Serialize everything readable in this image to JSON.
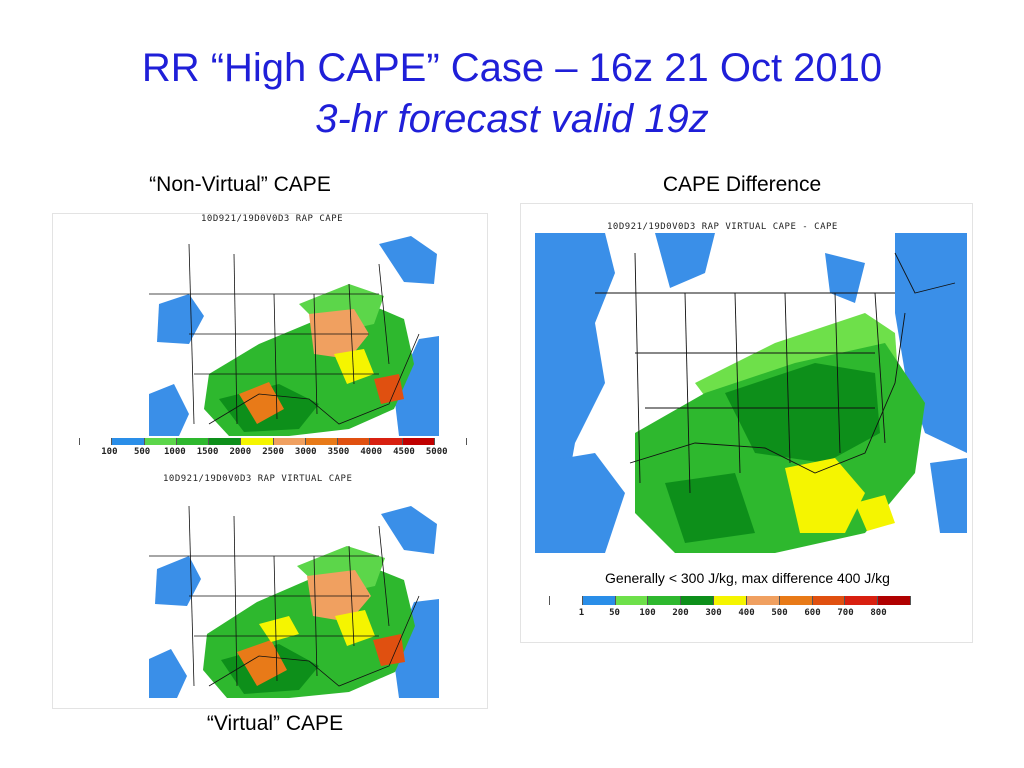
{
  "slide": {
    "title": "RR “High CAPE” Case – 16z 21 Oct 2010",
    "subtitle": "3-hr forecast valid 19z"
  },
  "captions": {
    "non_virtual": "“Non-Virtual” CAPE",
    "difference": "CAPE Difference",
    "virtual": "“Virtual” CAPE"
  },
  "maps": {
    "top_left": {
      "header": "10D921/19D0V0D3    RAP CAPE"
    },
    "bottom_left": {
      "header": "10D921/19D0V0D3    RAP VIRTUAL CAPE"
    },
    "right": {
      "header": "10D921/19D0V0D3   RAP VIRTUAL CAPE - CAPE"
    }
  },
  "cape_scale": {
    "labels": [
      "100",
      "500",
      "1000",
      "1500",
      "2000",
      "2500",
      "3000",
      "3500",
      "4000",
      "4500",
      "5000"
    ],
    "colors": [
      "#ffffff",
      "#2a8ee8",
      "#5cd64a",
      "#2eb82e",
      "#0d8f1a",
      "#f5f500",
      "#f0a060",
      "#e87a18",
      "#e05010",
      "#d82010",
      "#c00000",
      "#ffffff"
    ]
  },
  "diff_scale": {
    "note": "Generally < 300 J/kg, max difference 400 J/kg",
    "labels": [
      "1",
      "50",
      "100",
      "200",
      "300",
      "400",
      "500",
      "600",
      "700",
      "800"
    ],
    "colors": [
      "#ffffff",
      "#2a8ee8",
      "#6ee04a",
      "#2eb82e",
      "#0d8f1a",
      "#f5f500",
      "#f0a060",
      "#e87a18",
      "#e05010",
      "#d82010",
      "#b00000"
    ]
  }
}
